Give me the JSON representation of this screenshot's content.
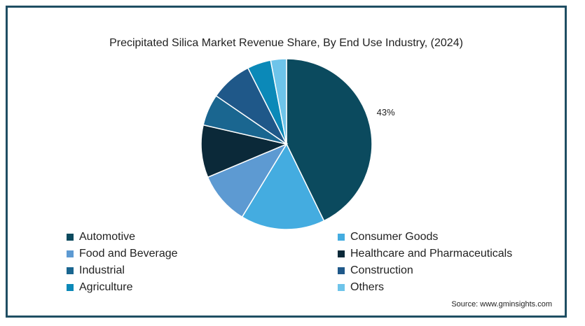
{
  "chart_data": {
    "type": "pie",
    "title": "Precipitated Silica Market Revenue Share, By End Use Industry,  (2024)",
    "series": [
      {
        "name": "Automotive",
        "value": 43,
        "color": "#0b4a5e"
      },
      {
        "name": "Consumer Goods",
        "value": 16,
        "color": "#44ace0"
      },
      {
        "name": "Food and Beverage",
        "value": 10,
        "color": "#5d9ad2"
      },
      {
        "name": "Healthcare and Pharmaceuticals",
        "value": 10,
        "color": "#0b2939"
      },
      {
        "name": "Industrial",
        "value": 6,
        "color": "#1a6690"
      },
      {
        "name": "Construction",
        "value": 8,
        "color": "#1f5889"
      },
      {
        "name": "Agriculture",
        "value": 4.5,
        "color": "#0b89b8"
      },
      {
        "name": "Others",
        "value": 3,
        "color": "#6ec4ea"
      }
    ],
    "data_labels": [
      {
        "series": "Automotive",
        "text": "43%"
      }
    ]
  },
  "source": "Source: www.gminsights.com"
}
